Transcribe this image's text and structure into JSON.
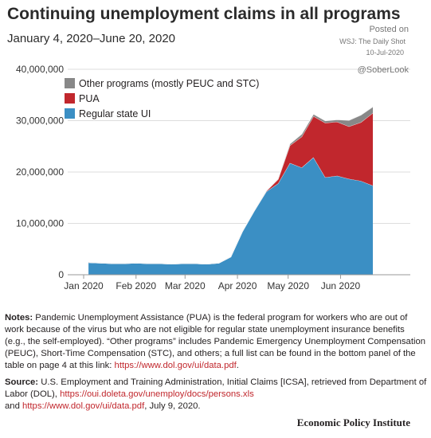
{
  "header": {
    "title": "Continuing unemployment claims in all programs",
    "subtitle": "January 4, 2020–June 20, 2020"
  },
  "source_overlay": {
    "posted": "Posted on",
    "wsj": "WSJ: The Daily Shot",
    "date": "10-Jul-2020",
    "handle": "@SoberLook"
  },
  "chart_data": {
    "type": "area",
    "stacked": true,
    "title": "Continuing unemployment claims in all programs",
    "subtitle": "January 4, 2020–June 20, 2020",
    "x_tick_labels": [
      "Jan 2020",
      "Feb 2020",
      "Mar 2020",
      "Apr 2020",
      "May 2020",
      "Jun 2020"
    ],
    "y_tick_labels": [
      "0",
      "10,000,000",
      "20,000,000",
      "30,000,000",
      "40,000,000"
    ],
    "ylim": [
      0,
      40000000
    ],
    "grid": "horizontal",
    "legend_position": "top-left",
    "x": [
      "2020-01-04",
      "2020-01-11",
      "2020-01-18",
      "2020-01-25",
      "2020-02-01",
      "2020-02-08",
      "2020-02-15",
      "2020-02-22",
      "2020-02-29",
      "2020-03-07",
      "2020-03-14",
      "2020-03-21",
      "2020-03-28",
      "2020-04-04",
      "2020-04-11",
      "2020-04-18",
      "2020-04-25",
      "2020-05-02",
      "2020-05-09",
      "2020-05-16",
      "2020-05-23",
      "2020-05-30",
      "2020-06-06",
      "2020-06-13",
      "2020-06-20"
    ],
    "series": [
      {
        "name": "Regular state UI",
        "color": "#3b8fc4",
        "values": [
          2400000,
          2300000,
          2200000,
          2200000,
          2300000,
          2200000,
          2200000,
          2100000,
          2200000,
          2200000,
          2100000,
          2300000,
          3500000,
          8500000,
          12500000,
          16200000,
          17800000,
          21800000,
          20900000,
          22900000,
          19000000,
          19300000,
          18700000,
          18300000,
          17400000
        ]
      },
      {
        "name": "PUA",
        "color": "#c1272d",
        "values": [
          0,
          0,
          0,
          0,
          0,
          0,
          0,
          0,
          0,
          0,
          0,
          0,
          0,
          0,
          0,
          100000,
          800000,
          3400000,
          6000000,
          8000000,
          10600000,
          10500000,
          10200000,
          11400000,
          14100000
        ]
      },
      {
        "name": "Other programs (mostly PEUC and STC)",
        "color": "#888888",
        "values": [
          0,
          0,
          0,
          0,
          0,
          0,
          0,
          0,
          0,
          0,
          0,
          0,
          0,
          0,
          0,
          50000,
          100000,
          300000,
          500000,
          400000,
          400000,
          400000,
          1200000,
          1400000,
          1200000
        ]
      }
    ]
  },
  "notes": {
    "label": "Notes:",
    "text": "Pandemic Unemployment Assistance (PUA) is the federal program for workers who are out of work because of the virus but who are not eligible for regular state unemployment insurance benefits (e.g., the self-employed). “Other programs” includes Pandemic Emergency Unemployment Compensation (PEUC), Short-Time Compensation (STC), and others; a full list can be found in the bottom panel of the table on page 4 at this link:",
    "link": "https://www.dol.gov/ui/data.pdf",
    "end": "."
  },
  "source": {
    "label": "Source:",
    "text1": "U.S. Employment and Training Administration, Initial Claims [ICSA], retrieved from Department of Labor (DOL),",
    "link1": "https://oui.doleta.gov/unemploy/docs/persons.xls",
    "and": "and",
    "link2": "https://www.dol.gov/ui/data.pdf",
    "text2": ", July 9, 2020."
  },
  "footer": {
    "brand": "Economic Policy Institute"
  }
}
